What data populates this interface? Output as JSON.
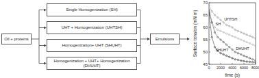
{
  "diagram": {
    "start": "Oil + proteins",
    "steps": [
      "Single Homogenization (SH)",
      "UHT + Homogenization (UHTSH)",
      "Homogenization+ UHT (SHUHT)",
      "Homogenization + UHT+ Homogenization (DHUHT)"
    ],
    "end": "Emulsions"
  },
  "chart_data": {
    "type": "scatter",
    "x_label": "time (s)",
    "y_label": "Surface tension (mN m)",
    "x": [
      0,
      500,
      1000,
      1500,
      2000,
      2500,
      3000,
      3500,
      4000,
      4500,
      5000,
      5500,
      6000,
      6500,
      7000,
      7500,
      8000
    ],
    "series": [
      {
        "name": "UHTSH",
        "color": "#8c8c8c",
        "marker": "circle",
        "line_style": "solid",
        "values": [
          69,
          66.5,
          65,
          64,
          63,
          62,
          61,
          60.5,
          60,
          59,
          58.5,
          58,
          57.5,
          57,
          56.5,
          56,
          55.5
        ]
      },
      {
        "name": "SH",
        "color": "#a6a6a6",
        "marker": "circle",
        "line_style": "solid",
        "values": [
          67,
          62,
          60,
          59,
          58.5,
          58,
          57.5,
          57,
          56.5,
          56,
          55.5,
          55,
          54.5,
          54,
          53.5,
          53,
          52.5
        ]
      },
      {
        "name": "SHUHT",
        "color": "#1a1a1a",
        "marker": "circle",
        "line_style": "solid",
        "values": [
          66,
          56,
          52,
          50.5,
          49.5,
          49,
          48.5,
          48,
          47.5,
          47,
          46.8,
          46.5,
          46.3,
          46.1,
          46,
          45.9,
          45.8
        ]
      },
      {
        "name": "DHUHT",
        "color": "#3a3a3a",
        "marker": "circle",
        "line_style": "solid",
        "values": [
          67,
          62,
          58,
          56,
          55,
          54,
          53,
          52,
          51,
          50,
          49.5,
          49,
          48.5,
          48,
          47.5,
          47,
          46.5
        ]
      }
    ],
    "xlim": [
      0,
      8000
    ],
    "xticks": [
      0,
      2000,
      4000,
      6000,
      8000
    ],
    "ylim": [
      45,
      70
    ],
    "yticks": [
      45,
      50,
      55,
      60,
      65,
      70
    ],
    "grid": false
  }
}
